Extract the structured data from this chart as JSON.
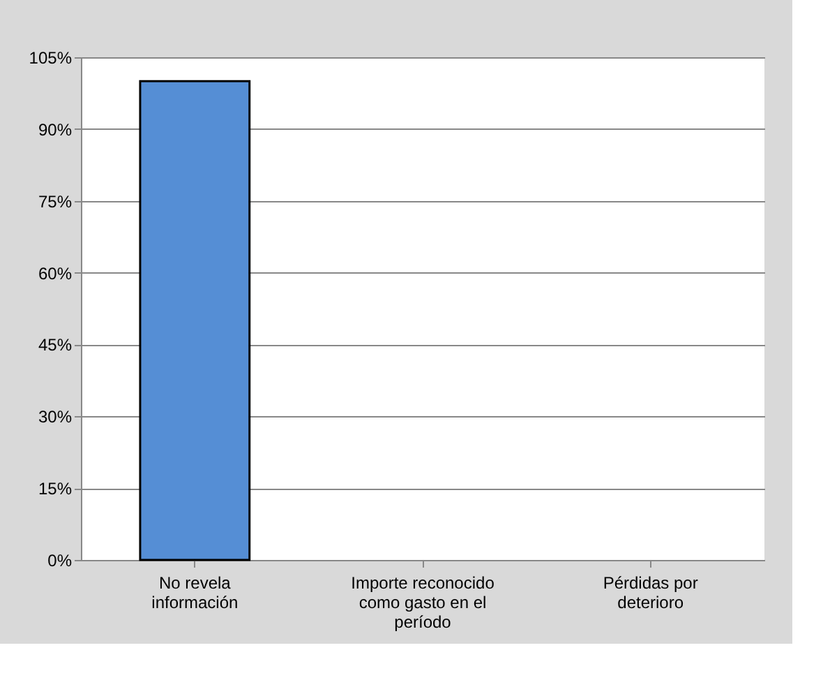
{
  "chart_data": {
    "type": "bar",
    "categories": [
      "No revela información",
      "Importe reconocido como gasto en el período",
      "Pérdidas por deterioro"
    ],
    "values": [
      100,
      0,
      0
    ],
    "color": "#558ed5",
    "ylim": [
      0,
      105
    ],
    "yticks": [
      {
        "value": 0,
        "label": "0%"
      },
      {
        "value": 15,
        "label": "15%"
      },
      {
        "value": 30,
        "label": "30%"
      },
      {
        "value": 45,
        "label": "45%"
      },
      {
        "value": 60,
        "label": "60%"
      },
      {
        "value": 75,
        "label": "75%"
      },
      {
        "value": 90,
        "label": "90%"
      },
      {
        "value": 105,
        "label": "105%"
      }
    ],
    "grid": "y"
  }
}
